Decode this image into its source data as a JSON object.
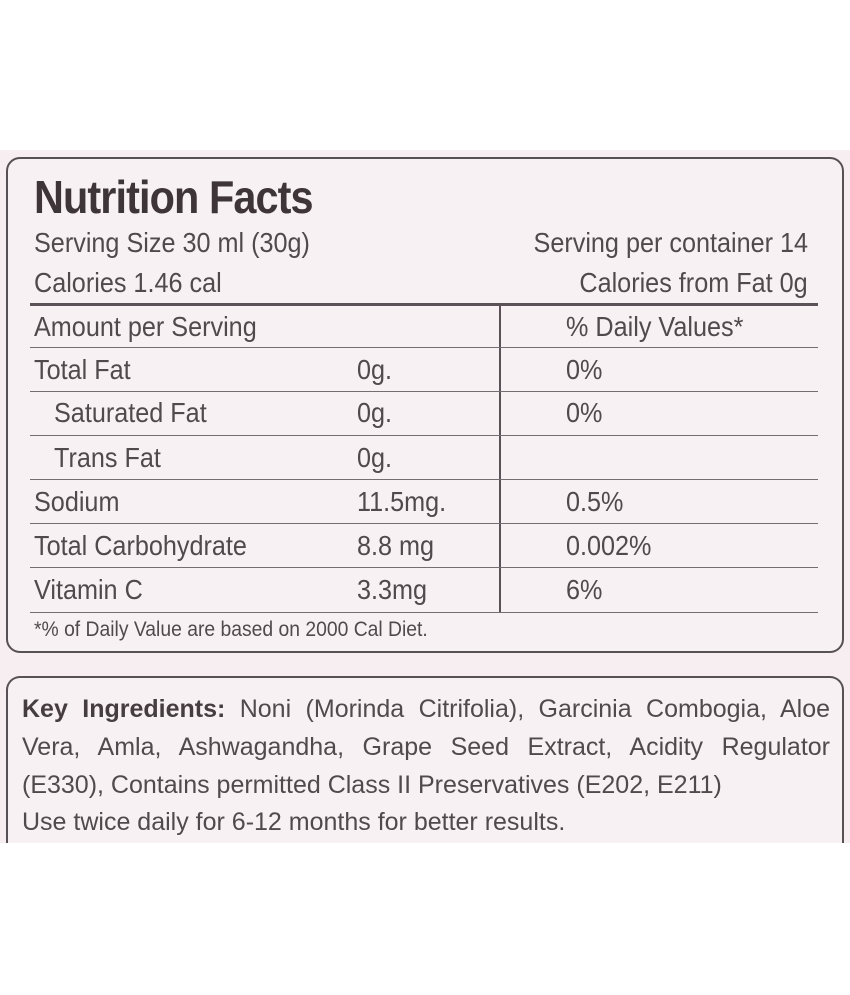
{
  "nutrition": {
    "title": "Nutrition Facts",
    "serving_size": "Serving Size 30 ml (30g)",
    "servings_per_container": "Serving per container 14",
    "calories": "Calories 1.46 cal",
    "calories_from_fat": "Calories from Fat 0g",
    "header_amount": "Amount per Serving",
    "header_daily": "% Daily Values*",
    "rows": [
      {
        "name": "Total Fat",
        "amount": "0g.",
        "daily": "0%"
      },
      {
        "name": "Saturated Fat",
        "amount": "0g.",
        "daily": "0%"
      },
      {
        "name": "Trans Fat",
        "amount": "0g.",
        "daily": ""
      },
      {
        "name": "Sodium",
        "amount": "11.5mg.",
        "daily": "0.5%"
      },
      {
        "name": "Total Carbohydrate",
        "amount": "8.8 mg",
        "daily": "0.002%"
      },
      {
        "name": "Vitamin C",
        "amount": "3.3mg",
        "daily": "6%"
      }
    ],
    "footnote": "*% of Daily Value are based on 2000 Cal Diet."
  },
  "ingredients": {
    "heading": "Key Ingredients:",
    "text": " Noni (Morinda Citrifolia), Garcinia Combogia, Aloe Vera, Amla, Ashwagandha, Grape Seed Extract, Acidity Regulator (E330), Contains permitted Class II Preservatives (E202, E211)",
    "usage": "Use twice daily for 6-12 months for better results."
  },
  "colors": {
    "label_background": "#f8f1f3",
    "text": "#514a4d",
    "border": "#575054"
  }
}
